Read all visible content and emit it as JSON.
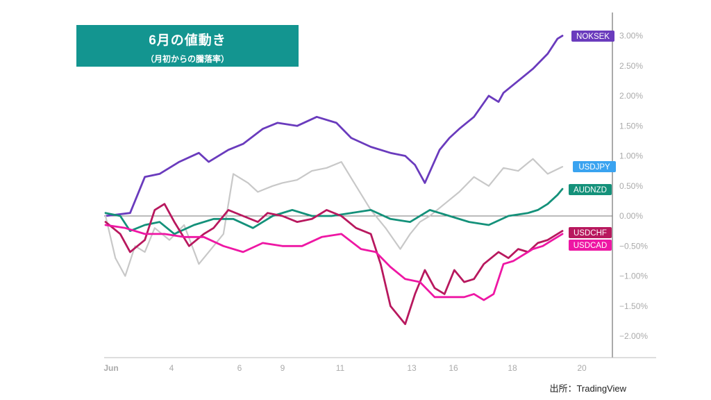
{
  "header": {
    "title": "6月の値動き",
    "subtitle": "（月初からの騰落率）"
  },
  "source": "出所：TradingView",
  "chart_data": {
    "type": "line",
    "x_ticks": [
      "Jun",
      "4",
      "6",
      "9",
      "11",
      "13",
      "16",
      "18",
      "20"
    ],
    "y_ticks": [
      "3.00%",
      "2.50%",
      "2.00%",
      "1.50%",
      "1.00%",
      "0.50%",
      "0.00%",
      "−0.50%",
      "−1.00%",
      "−1.50%",
      "−2.00%"
    ],
    "ylim": [
      -2.3,
      3.3
    ],
    "grid": false,
    "x_index_range": [
      0,
      93
    ],
    "series": [
      {
        "name": "NOKSEK",
        "color": "#6a3bbd",
        "x": [
          0,
          5,
          8,
          11,
          15,
          19,
          21,
          25,
          28,
          32,
          35,
          39,
          43,
          47,
          50,
          54,
          58,
          61,
          63,
          65,
          68,
          70,
          72,
          75,
          78,
          80,
          81,
          84,
          87,
          90,
          92,
          93
        ],
        "values": [
          0.0,
          0.05,
          0.65,
          0.7,
          0.9,
          1.05,
          0.9,
          1.1,
          1.2,
          1.45,
          1.55,
          1.5,
          1.65,
          1.55,
          1.3,
          1.15,
          1.05,
          1.0,
          0.85,
          0.55,
          1.1,
          1.3,
          1.45,
          1.65,
          2.0,
          1.9,
          2.05,
          2.25,
          2.45,
          2.7,
          2.95,
          3.0
        ]
      },
      {
        "name": "USDJPY",
        "color": "#c8c8c8",
        "x": [
          0,
          2,
          4,
          6,
          8,
          10,
          13,
          16,
          19,
          21,
          24,
          26,
          29,
          31,
          34,
          36,
          39,
          42,
          45,
          48,
          51,
          54,
          57,
          60,
          62,
          64,
          66,
          69,
          72,
          75,
          78,
          81,
          84,
          87,
          90,
          93
        ],
        "values": [
          0.0,
          -0.7,
          -1.0,
          -0.5,
          -0.6,
          -0.2,
          -0.4,
          -0.15,
          -0.8,
          -0.6,
          -0.3,
          0.7,
          0.55,
          0.4,
          0.5,
          0.55,
          0.6,
          0.75,
          0.8,
          0.9,
          0.5,
          0.1,
          -0.2,
          -0.55,
          -0.3,
          -0.1,
          0.0,
          0.2,
          0.4,
          0.65,
          0.5,
          0.8,
          0.75,
          0.95,
          0.7,
          0.82
        ]
      },
      {
        "name": "AUDNZD",
        "color": "#14917a",
        "x": [
          0,
          3,
          5,
          8,
          11,
          14,
          18,
          22,
          26,
          30,
          34,
          38,
          42,
          46,
          50,
          54,
          58,
          62,
          66,
          70,
          74,
          78,
          82,
          86,
          88,
          90,
          92,
          93
        ],
        "values": [
          0.05,
          0.0,
          -0.25,
          -0.15,
          -0.1,
          -0.3,
          -0.15,
          -0.05,
          -0.05,
          -0.2,
          0.0,
          0.1,
          0.0,
          0.0,
          0.05,
          0.1,
          -0.05,
          -0.1,
          0.1,
          0.0,
          -0.1,
          -0.15,
          0.0,
          0.05,
          0.1,
          0.2,
          0.35,
          0.45
        ]
      },
      {
        "name": "USDCHF",
        "color": "#b8185e",
        "x": [
          0,
          3,
          5,
          8,
          10,
          12,
          14,
          17,
          20,
          22,
          25,
          28,
          31,
          33,
          36,
          39,
          42,
          45,
          48,
          51,
          54,
          56,
          58,
          61,
          63,
          65,
          67,
          69,
          71,
          73,
          75,
          77,
          80,
          82,
          84,
          86,
          88,
          90,
          92,
          93
        ],
        "values": [
          -0.1,
          -0.3,
          -0.6,
          -0.4,
          0.1,
          0.2,
          -0.1,
          -0.5,
          -0.3,
          -0.2,
          0.1,
          0.0,
          -0.1,
          0.05,
          0.0,
          -0.1,
          -0.05,
          0.1,
          0.0,
          -0.2,
          -0.3,
          -0.8,
          -1.5,
          -1.8,
          -1.3,
          -0.9,
          -1.2,
          -1.3,
          -0.9,
          -1.1,
          -1.05,
          -0.8,
          -0.6,
          -0.7,
          -0.55,
          -0.6,
          -0.45,
          -0.4,
          -0.3,
          -0.25
        ]
      },
      {
        "name": "USDCAD",
        "color": "#ee17a4",
        "x": [
          0,
          4,
          8,
          12,
          16,
          20,
          24,
          28,
          32,
          36,
          40,
          44,
          48,
          52,
          55,
          58,
          61,
          64,
          67,
          70,
          73,
          75,
          77,
          79,
          81,
          83,
          85,
          87,
          89,
          91,
          93
        ],
        "values": [
          -0.15,
          -0.2,
          -0.3,
          -0.3,
          -0.35,
          -0.35,
          -0.5,
          -0.6,
          -0.45,
          -0.5,
          -0.5,
          -0.35,
          -0.3,
          -0.55,
          -0.6,
          -0.85,
          -1.05,
          -1.1,
          -1.35,
          -1.35,
          -1.35,
          -1.3,
          -1.4,
          -1.3,
          -0.8,
          -0.75,
          -0.65,
          -0.55,
          -0.5,
          -0.4,
          -0.3
        ]
      }
    ]
  }
}
